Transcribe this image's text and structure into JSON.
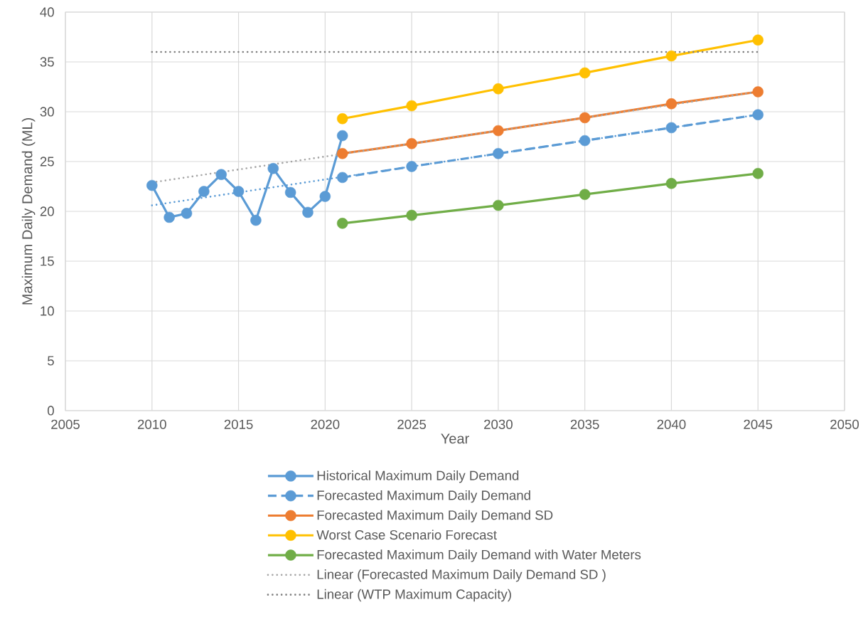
{
  "chart_data": {
    "type": "line",
    "xlabel": "Year",
    "ylabel": "Maximum Daily Demand (ML)",
    "xlim": [
      2005,
      2050
    ],
    "xticks": [
      2005,
      2010,
      2015,
      2020,
      2025,
      2030,
      2035,
      2040,
      2045,
      2050
    ],
    "ylim": [
      0,
      40
    ],
    "yticks": [
      0,
      5,
      10,
      15,
      20,
      25,
      30,
      35,
      40
    ],
    "grid": true,
    "legend": "bottom",
    "marker": "circle",
    "line_style": "solid",
    "series": [
      {
        "name": "Historical Maximum Daily Demand",
        "color": "#5b9bd5",
        "x": [
          2010,
          2011,
          2012,
          2013,
          2014,
          2015,
          2016,
          2017,
          2018,
          2019,
          2020,
          2021
        ],
        "values": [
          22.6,
          19.4,
          19.8,
          22.0,
          23.7,
          22.0,
          19.1,
          24.3,
          21.9,
          19.9,
          21.5,
          27.6
        ]
      },
      {
        "name": "Forecasted Maximum Daily Demand",
        "color": "#5b9bd5",
        "line_style": "dashed",
        "x": [
          2021,
          2025,
          2030,
          2035,
          2040,
          2045
        ],
        "values": [
          23.4,
          24.5,
          25.8,
          27.1,
          28.4,
          29.7
        ]
      },
      {
        "name": "Forecasted Maximum Daily Demand SD",
        "color": "#ed7d31",
        "x": [
          2021,
          2025,
          2030,
          2035,
          2040,
          2045
        ],
        "values": [
          25.8,
          26.8,
          28.1,
          29.4,
          30.8,
          32.0
        ]
      },
      {
        "name": "Worst Case Scenario Forecast",
        "color": "#ffc000",
        "x": [
          2021,
          2025,
          2030,
          2035,
          2040,
          2045
        ],
        "values": [
          29.3,
          30.6,
          32.3,
          33.9,
          35.6,
          37.2
        ]
      },
      {
        "name": "Forecasted Maximum Daily Demand with Water Meters",
        "color": "#70ad47",
        "x": [
          2021,
          2025,
          2030,
          2035,
          2040,
          2045
        ],
        "values": [
          18.8,
          19.6,
          20.6,
          21.7,
          22.8,
          23.8
        ]
      },
      {
        "name": "Linear (Forecasted Maximum Daily Demand SD )",
        "color": "#a5a5a5",
        "line_style": "dotted",
        "marker": "none",
        "x": [
          2010,
          2045
        ],
        "values": [
          22.9,
          32.0
        ]
      },
      {
        "name": "Linear (WTP Maximum Capacity)",
        "color": "#7f7f7f",
        "line_style": "dotted",
        "marker": "none",
        "x": [
          2010,
          2045
        ],
        "values": [
          36,
          36
        ]
      },
      {
        "color": "#5b9bd5",
        "line_style": "dotted",
        "marker": "none",
        "x": [
          2010,
          2045
        ],
        "values": [
          20.6,
          29.7
        ]
      }
    ]
  }
}
